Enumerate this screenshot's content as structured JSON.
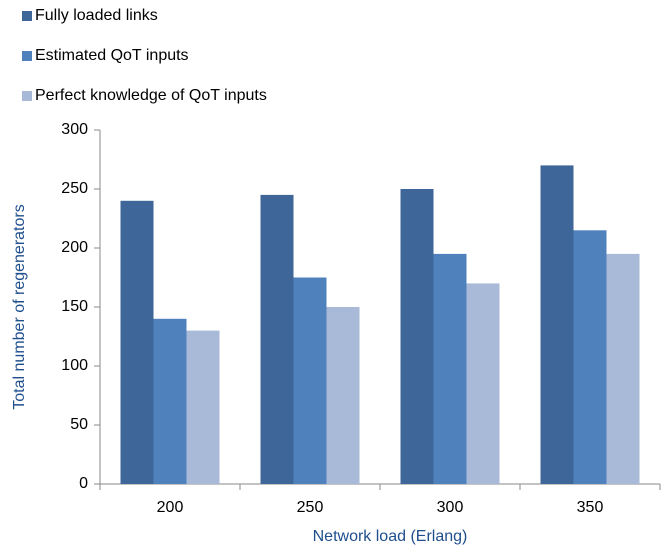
{
  "chart_data": {
    "type": "bar",
    "ylabel": "Total number of regenerators",
    "xlabel": "Network load (Erlang)",
    "categories": [
      "200",
      "250",
      "300",
      "350"
    ],
    "series": [
      {
        "name": "Fully loaded links",
        "color": "#3e6699",
        "values": [
          240,
          245,
          250,
          270
        ]
      },
      {
        "name": "Estimated QoT inputs",
        "color": "#4f81bd",
        "values": [
          140,
          175,
          195,
          215
        ]
      },
      {
        "name": "Perfect knowledge of QoT inputs",
        "color": "#a9bad9",
        "values": [
          130,
          150,
          170,
          195
        ]
      }
    ],
    "ylim": [
      0,
      300
    ],
    "yticks": [
      0,
      50,
      100,
      150,
      200,
      250,
      300
    ],
    "grid": false,
    "legend": "top-left"
  }
}
